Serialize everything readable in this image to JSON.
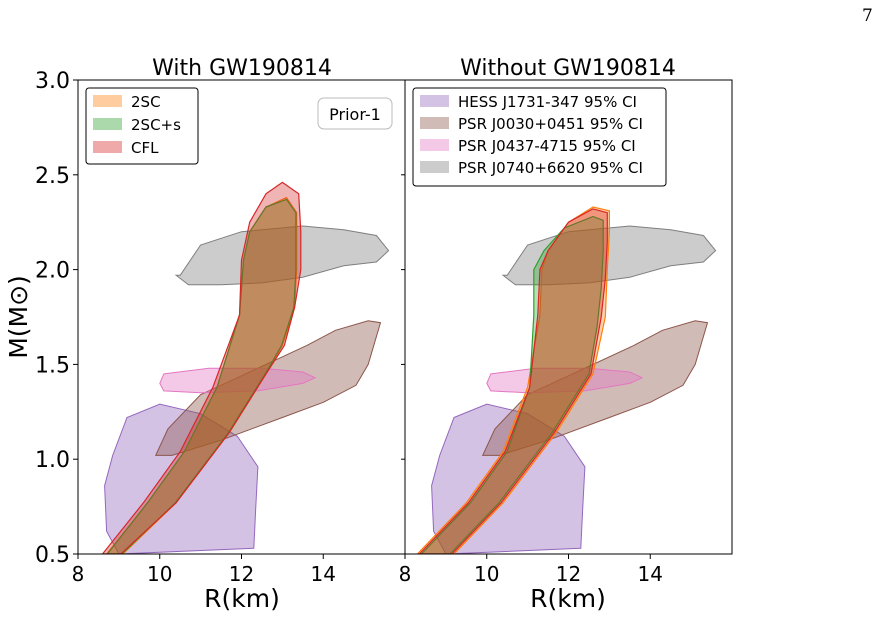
{
  "page_number": "7",
  "colors": {
    "2SC": "#ff7f0e",
    "2SC+s": "#2ca02c",
    "CFL": "#d62728",
    "HESS": "#9467bd",
    "PSR_J0030": "#8c564b",
    "PSR_J0437": "#e377c2",
    "PSR_J0740": "#7f7f7f"
  },
  "chart_data": [
    {
      "type": "area",
      "title": "With GW190814",
      "xlabel": "R(km)",
      "ylabel": "M(M⊙)",
      "xlim": [
        8,
        16
      ],
      "ylim": [
        0.5,
        3.0
      ],
      "xticks": [
        "8",
        "10",
        "12",
        "14"
      ],
      "yticks": [
        "0.5",
        "1.0",
        "1.5",
        "2.0",
        "2.5",
        "3.0"
      ],
      "annotation": "Prior-1",
      "legend": {
        "placement": "top-left",
        "entries": [
          "2SC",
          "2SC+s",
          "CFL"
        ]
      },
      "observational_regions": [
        {
          "name": "HESS J1731-347 95% CI",
          "polygon": [
            [
              9.2,
              1.22
            ],
            [
              10.0,
              1.29
            ],
            [
              11.0,
              1.24
            ],
            [
              11.9,
              1.12
            ],
            [
              12.4,
              0.96
            ],
            [
              12.35,
              0.75
            ],
            [
              12.3,
              0.53
            ],
            [
              9.0,
              0.5
            ],
            [
              8.7,
              0.62
            ],
            [
              8.65,
              0.86
            ],
            [
              8.85,
              1.02
            ]
          ]
        },
        {
          "name": "PSR J0030+0451 95% CI",
          "polygon": [
            [
              9.9,
              1.02
            ],
            [
              10.3,
              1.02
            ],
            [
              11.5,
              1.1
            ],
            [
              13.0,
              1.22
            ],
            [
              14.0,
              1.3
            ],
            [
              14.8,
              1.39
            ],
            [
              15.1,
              1.5
            ],
            [
              15.4,
              1.72
            ],
            [
              15.1,
              1.73
            ],
            [
              14.3,
              1.68
            ],
            [
              13.6,
              1.6
            ],
            [
              12.2,
              1.46
            ],
            [
              11.0,
              1.34
            ],
            [
              10.2,
              1.16
            ]
          ]
        },
        {
          "name": "PSR J0437-4715 95% CI",
          "polygon": [
            [
              10.1,
              1.45
            ],
            [
              11.2,
              1.48
            ],
            [
              12.5,
              1.48
            ],
            [
              13.5,
              1.46
            ],
            [
              13.8,
              1.43
            ],
            [
              13.5,
              1.4
            ],
            [
              12.4,
              1.36
            ],
            [
              11.0,
              1.35
            ],
            [
              10.1,
              1.36
            ],
            [
              10.0,
              1.4
            ]
          ]
        },
        {
          "name": "PSR J0740+6620 95% CI",
          "polygon": [
            [
              10.5,
              1.97
            ],
            [
              11.0,
              2.13
            ],
            [
              12.0,
              2.2
            ],
            [
              13.5,
              2.23
            ],
            [
              14.5,
              2.21
            ],
            [
              15.3,
              2.18
            ],
            [
              15.6,
              2.1
            ],
            [
              15.3,
              2.04
            ],
            [
              14.5,
              2.02
            ],
            [
              13.5,
              1.96
            ],
            [
              12.5,
              1.93
            ],
            [
              11.5,
              1.92
            ],
            [
              10.7,
              1.92
            ],
            [
              10.4,
              1.97
            ]
          ]
        }
      ],
      "series": [
        {
          "name": "2SC",
          "polygon": [
            [
              8.7,
              0.5
            ],
            [
              9.7,
              0.77
            ],
            [
              10.6,
              1.04
            ],
            [
              11.4,
              1.38
            ],
            [
              11.95,
              1.76
            ],
            [
              12.05,
              2.05
            ],
            [
              12.2,
              2.2
            ],
            [
              12.6,
              2.33
            ],
            [
              13.1,
              2.38
            ],
            [
              13.35,
              2.3
            ],
            [
              13.35,
              2.0
            ],
            [
              13.3,
              1.8
            ],
            [
              13.0,
              1.6
            ],
            [
              12.6,
              1.45
            ],
            [
              11.7,
              1.14
            ],
            [
              10.4,
              0.77
            ],
            [
              9.1,
              0.5
            ]
          ]
        },
        {
          "name": "2SC+s",
          "polygon": [
            [
              8.72,
              0.5
            ],
            [
              9.7,
              0.77
            ],
            [
              10.6,
              1.04
            ],
            [
              11.4,
              1.38
            ],
            [
              11.95,
              1.76
            ],
            [
              12.05,
              2.05
            ],
            [
              12.2,
              2.2
            ],
            [
              12.6,
              2.33
            ],
            [
              13.1,
              2.37
            ],
            [
              13.33,
              2.3
            ],
            [
              13.33,
              2.0
            ],
            [
              13.28,
              1.8
            ],
            [
              12.98,
              1.6
            ],
            [
              12.58,
              1.45
            ],
            [
              11.68,
              1.14
            ],
            [
              10.38,
              0.77
            ],
            [
              9.08,
              0.5
            ]
          ]
        },
        {
          "name": "CFL",
          "polygon": [
            [
              8.6,
              0.5
            ],
            [
              9.6,
              0.77
            ],
            [
              10.5,
              1.04
            ],
            [
              11.3,
              1.38
            ],
            [
              11.95,
              1.76
            ],
            [
              12.0,
              2.05
            ],
            [
              12.2,
              2.25
            ],
            [
              12.6,
              2.4
            ],
            [
              13.0,
              2.46
            ],
            [
              13.4,
              2.4
            ],
            [
              13.45,
              2.2
            ],
            [
              13.45,
              2.0
            ],
            [
              13.3,
              1.8
            ],
            [
              13.05,
              1.6
            ],
            [
              12.6,
              1.45
            ],
            [
              11.7,
              1.14
            ],
            [
              10.4,
              0.77
            ],
            [
              9.05,
              0.5
            ]
          ]
        }
      ]
    },
    {
      "type": "area",
      "title": "Without GW190814",
      "xlabel": "R(km)",
      "xlim": [
        8,
        16
      ],
      "ylim": [
        0.5,
        3.0
      ],
      "xticks": [
        "8",
        "10",
        "12",
        "14"
      ],
      "legend": {
        "placement": "top-left",
        "entries": [
          "HESS J1731-347 95% CI",
          "PSR J0030+0451 95% CI",
          "PSR J0437-4715 95% CI",
          "PSR J0740+6620 95% CI"
        ]
      },
      "observational_regions": [
        {
          "name": "HESS J1731-347 95% CI",
          "polygon": [
            [
              9.2,
              1.22
            ],
            [
              10.0,
              1.29
            ],
            [
              11.0,
              1.24
            ],
            [
              11.9,
              1.12
            ],
            [
              12.4,
              0.96
            ],
            [
              12.35,
              0.75
            ],
            [
              12.3,
              0.53
            ],
            [
              9.0,
              0.5
            ],
            [
              8.7,
              0.62
            ],
            [
              8.65,
              0.86
            ],
            [
              8.85,
              1.02
            ]
          ]
        },
        {
          "name": "PSR J0030+0451 95% CI",
          "polygon": [
            [
              9.9,
              1.02
            ],
            [
              10.3,
              1.02
            ],
            [
              11.5,
              1.1
            ],
            [
              13.0,
              1.22
            ],
            [
              14.0,
              1.3
            ],
            [
              14.8,
              1.39
            ],
            [
              15.1,
              1.5
            ],
            [
              15.4,
              1.72
            ],
            [
              15.1,
              1.73
            ],
            [
              14.3,
              1.68
            ],
            [
              13.6,
              1.6
            ],
            [
              12.2,
              1.46
            ],
            [
              11.0,
              1.34
            ],
            [
              10.2,
              1.16
            ]
          ]
        },
        {
          "name": "PSR J0437-4715 95% CI",
          "polygon": [
            [
              10.1,
              1.45
            ],
            [
              11.2,
              1.48
            ],
            [
              12.5,
              1.48
            ],
            [
              13.5,
              1.46
            ],
            [
              13.8,
              1.43
            ],
            [
              13.5,
              1.4
            ],
            [
              12.4,
              1.36
            ],
            [
              11.0,
              1.35
            ],
            [
              10.1,
              1.36
            ],
            [
              10.0,
              1.4
            ]
          ]
        },
        {
          "name": "PSR J0740+6620 95% CI",
          "polygon": [
            [
              10.5,
              1.97
            ],
            [
              11.0,
              2.13
            ],
            [
              12.0,
              2.2
            ],
            [
              13.5,
              2.23
            ],
            [
              14.5,
              2.21
            ],
            [
              15.3,
              2.18
            ],
            [
              15.6,
              2.1
            ],
            [
              15.3,
              2.04
            ],
            [
              14.5,
              2.02
            ],
            [
              13.5,
              1.96
            ],
            [
              12.5,
              1.93
            ],
            [
              11.5,
              1.92
            ],
            [
              10.7,
              1.92
            ],
            [
              10.4,
              1.97
            ]
          ]
        }
      ],
      "series": [
        {
          "name": "2SC",
          "polygon": [
            [
              8.3,
              0.5
            ],
            [
              9.5,
              0.77
            ],
            [
              10.4,
              1.04
            ],
            [
              11.0,
              1.38
            ],
            [
              11.3,
              1.76
            ],
            [
              11.35,
              2.0
            ],
            [
              11.5,
              2.1
            ],
            [
              12.0,
              2.25
            ],
            [
              12.6,
              2.33
            ],
            [
              13.0,
              2.31
            ],
            [
              13.0,
              2.2
            ],
            [
              12.95,
              2.0
            ],
            [
              12.9,
              1.75
            ],
            [
              12.6,
              1.45
            ],
            [
              11.7,
              1.14
            ],
            [
              10.4,
              0.77
            ],
            [
              9.2,
              0.5
            ]
          ]
        },
        {
          "name": "2SC+s",
          "polygon": [
            [
              8.4,
              0.5
            ],
            [
              9.6,
              0.77
            ],
            [
              10.5,
              1.04
            ],
            [
              11.05,
              1.38
            ],
            [
              11.15,
              1.76
            ],
            [
              11.15,
              2.0
            ],
            [
              11.4,
              2.1
            ],
            [
              11.9,
              2.22
            ],
            [
              12.6,
              2.28
            ],
            [
              12.85,
              2.26
            ],
            [
              12.85,
              2.1
            ],
            [
              12.8,
              1.9
            ],
            [
              12.7,
              1.7
            ],
            [
              12.5,
              1.45
            ],
            [
              11.6,
              1.14
            ],
            [
              10.3,
              0.77
            ],
            [
              9.1,
              0.5
            ]
          ]
        },
        {
          "name": "CFL",
          "polygon": [
            [
              8.35,
              0.5
            ],
            [
              9.55,
              0.77
            ],
            [
              10.45,
              1.04
            ],
            [
              11.05,
              1.38
            ],
            [
              11.25,
              1.76
            ],
            [
              11.3,
              2.0
            ],
            [
              11.5,
              2.1
            ],
            [
              12.0,
              2.25
            ],
            [
              12.6,
              2.32
            ],
            [
              12.95,
              2.3
            ],
            [
              12.95,
              2.15
            ],
            [
              12.9,
              1.95
            ],
            [
              12.8,
              1.75
            ],
            [
              12.55,
              1.45
            ],
            [
              11.65,
              1.14
            ],
            [
              10.35,
              0.77
            ],
            [
              9.15,
              0.5
            ]
          ]
        }
      ]
    }
  ]
}
